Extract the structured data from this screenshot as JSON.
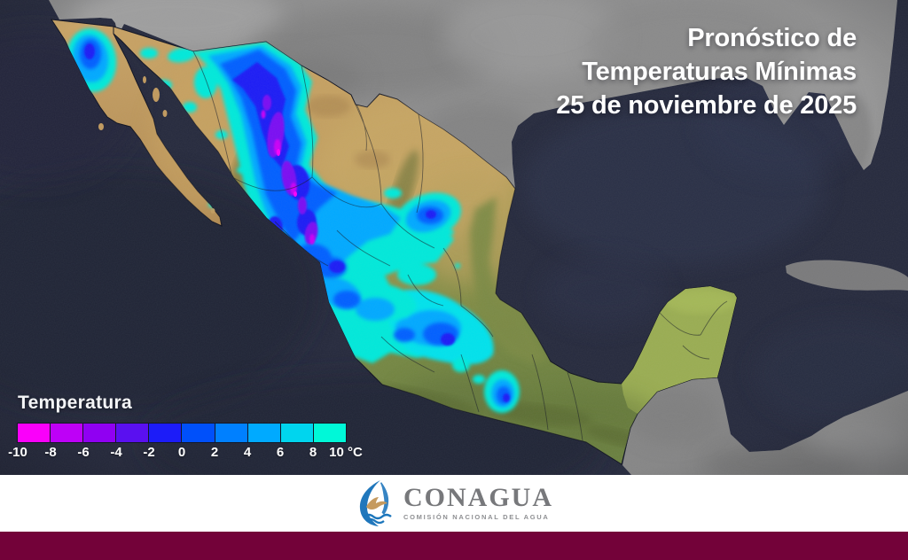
{
  "title": {
    "line1": "Pronóstico de",
    "line2": "Temperaturas Mínimas",
    "line3": "25 de noviembre de 2025"
  },
  "legend": {
    "label": "Temperatura",
    "unit": "°C",
    "tick_values": [
      "-10",
      "-8",
      "-6",
      "-4",
      "-2",
      "0",
      "2",
      "4",
      "6",
      "8",
      "10"
    ],
    "colors": [
      "#fa00fa",
      "#be00f7",
      "#9000f2",
      "#5a10f0",
      "#1c1cf8",
      "#0050fa",
      "#0080ff",
      "#00aaff",
      "#00d5ee",
      "#00f8d8"
    ]
  },
  "footer": {
    "org": "CONAGUA",
    "tagline": "COMISIÓN NACIONAL DEL AGUA"
  },
  "colors": {
    "ocean": "#262a3d",
    "footer_bar": "#730239",
    "footer_bg": "#ffffff",
    "title_text": "#ffffff"
  }
}
